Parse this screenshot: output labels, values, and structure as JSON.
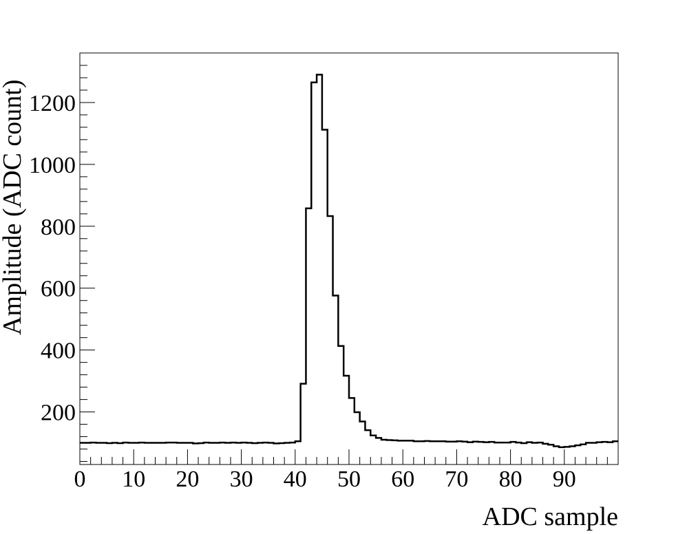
{
  "chart_data": {
    "type": "bar",
    "title": "",
    "xlabel": "ADC  sample",
    "ylabel": "Amplitude   (ADC count)",
    "xlim": [
      0,
      100
    ],
    "ylim": [
      30,
      1360
    ],
    "x_tick_labels": [
      "0",
      "10",
      "20",
      "30",
      "40",
      "50",
      "60",
      "70",
      "80",
      "90"
    ],
    "y_tick_labels": [
      "200",
      "400",
      "600",
      "800",
      "1000",
      "1200"
    ],
    "grid": false,
    "legend": "none",
    "bin_width": 1,
    "x_start": 0,
    "values": [
      100,
      100,
      101,
      100,
      100,
      99,
      100,
      99,
      101,
      100,
      100,
      101,
      100,
      100,
      100,
      100,
      101,
      101,
      100,
      100,
      100,
      98,
      99,
      101,
      100,
      100,
      101,
      100,
      101,
      100,
      101,
      100,
      99,
      100,
      101,
      100,
      98,
      99,
      100,
      101,
      105,
      291,
      858,
      1265,
      1290,
      1112,
      833,
      576,
      413,
      317,
      245,
      199,
      169,
      141,
      124,
      116,
      110,
      109,
      108,
      107,
      107,
      107,
      105,
      105,
      106,
      105,
      105,
      105,
      104,
      104,
      105,
      104,
      102,
      104,
      103,
      102,
      103,
      101,
      101,
      101,
      103,
      101,
      99,
      102,
      100,
      101,
      97,
      94,
      89,
      86,
      87,
      89,
      92,
      95,
      100,
      100,
      102,
      103,
      102,
      105
    ],
    "line_color": "#000000"
  }
}
